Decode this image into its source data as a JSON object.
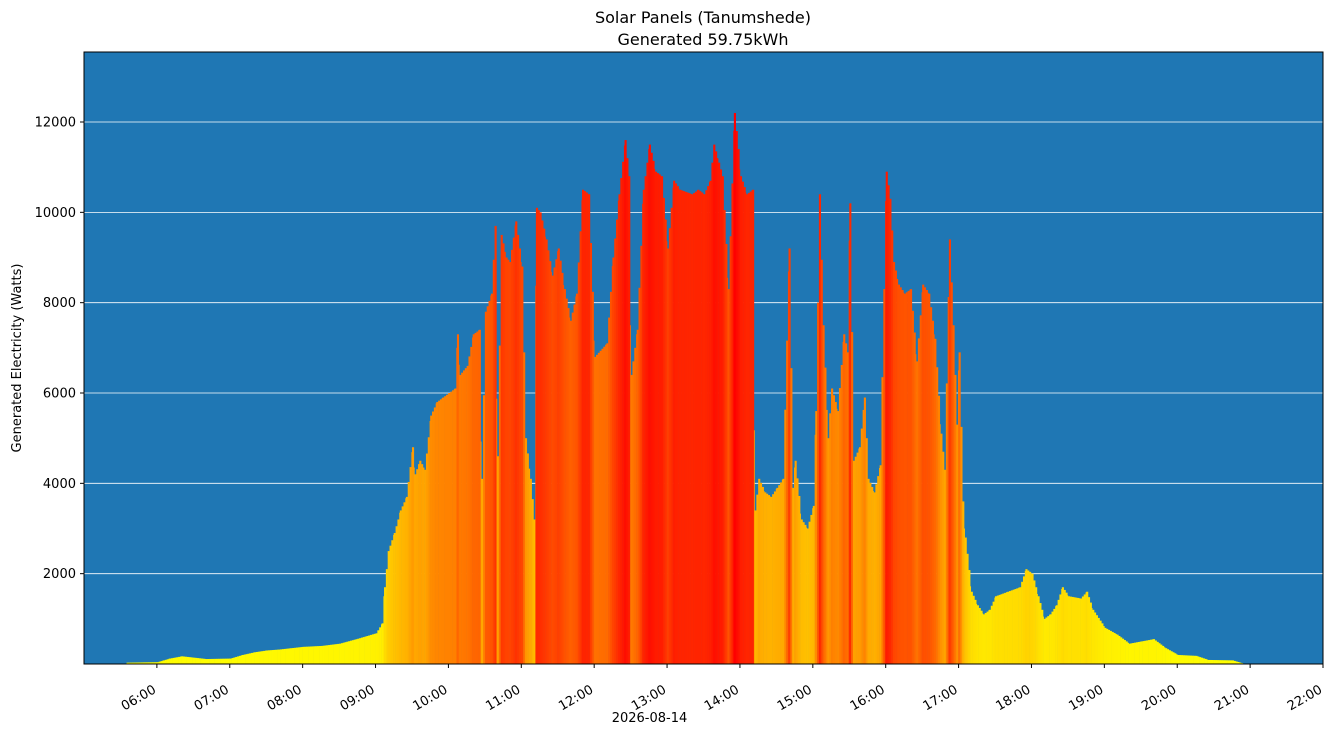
{
  "chart_data": {
    "type": "bar",
    "title": "Solar Panels (Tanumshede)",
    "subtitle": "Generated 59.75kWh",
    "xlabel": "2026-08-14",
    "ylabel": "Generated Electricity (Watts)",
    "ylim": [
      0,
      13550
    ],
    "xlim_hours": [
      5.0,
      22.0
    ],
    "grid": "horizontal",
    "background_color": "#1f77b4",
    "grid_color": "#ffffff",
    "color_scale": {
      "low": "#ffff00",
      "high": "#ff0000",
      "max_watts": 12200
    },
    "y_ticks": [
      2000,
      4000,
      6000,
      8000,
      10000,
      12000
    ],
    "y_tick_labels": [
      "2000",
      "4000",
      "6000",
      "8000",
      "10000",
      "12000"
    ],
    "x_ticks": [
      "06:00",
      "07:00",
      "08:00",
      "09:00",
      "10:00",
      "11:00",
      "12:00",
      "13:00",
      "14:00",
      "15:00",
      "16:00",
      "17:00",
      "18:00",
      "19:00",
      "20:00",
      "21:00",
      "22:00"
    ],
    "profile": [
      [
        "05:35",
        30
      ],
      [
        "06:00",
        40
      ],
      [
        "06:05",
        80
      ],
      [
        "06:10",
        120
      ],
      [
        "06:20",
        170
      ],
      [
        "06:30",
        140
      ],
      [
        "06:40",
        110
      ],
      [
        "07:00",
        120
      ],
      [
        "07:10",
        200
      ],
      [
        "07:20",
        260
      ],
      [
        "07:30",
        300
      ],
      [
        "07:40",
        320
      ],
      [
        "07:50",
        350
      ],
      [
        "08:00",
        380
      ],
      [
        "08:15",
        400
      ],
      [
        "08:30",
        450
      ],
      [
        "08:45",
        560
      ],
      [
        "09:00",
        680
      ],
      [
        "09:05",
        900
      ],
      [
        "09:07",
        1700
      ],
      [
        "09:10",
        2500
      ],
      [
        "09:15",
        2900
      ],
      [
        "09:20",
        3400
      ],
      [
        "09:25",
        3700
      ],
      [
        "09:30",
        4800
      ],
      [
        "09:32",
        4200
      ],
      [
        "09:36",
        4500
      ],
      [
        "09:40",
        4300
      ],
      [
        "09:45",
        5500
      ],
      [
        "09:50",
        5800
      ],
      [
        "09:55",
        5900
      ],
      [
        "10:00",
        6000
      ],
      [
        "10:05",
        6100
      ],
      [
        "10:07",
        7300
      ],
      [
        "10:09",
        6400
      ],
      [
        "10:15",
        6600
      ],
      [
        "10:20",
        7300
      ],
      [
        "10:25",
        7400
      ],
      [
        "10:27",
        4100
      ],
      [
        "10:30",
        7800
      ],
      [
        "10:35",
        8200
      ],
      [
        "10:38",
        9700
      ],
      [
        "10:40",
        4600
      ],
      [
        "10:43",
        9500
      ],
      [
        "10:47",
        9000
      ],
      [
        "10:50",
        8900
      ],
      [
        "10:55",
        9800
      ],
      [
        "11:00",
        8800
      ],
      [
        "11:03",
        5000
      ],
      [
        "11:07",
        4100
      ],
      [
        "11:10",
        3200
      ],
      [
        "11:12",
        10100
      ],
      [
        "11:15",
        10000
      ],
      [
        "11:20",
        9400
      ],
      [
        "11:25",
        8600
      ],
      [
        "11:30",
        9200
      ],
      [
        "11:35",
        8300
      ],
      [
        "11:40",
        7600
      ],
      [
        "11:45",
        8200
      ],
      [
        "11:50",
        10500
      ],
      [
        "11:55",
        10400
      ],
      [
        "12:00",
        6800
      ],
      [
        "12:10",
        7100
      ],
      [
        "12:15",
        9000
      ],
      [
        "12:20",
        10400
      ],
      [
        "12:25",
        11600
      ],
      [
        "12:28",
        10800
      ],
      [
        "12:30",
        6400
      ],
      [
        "12:35",
        7400
      ],
      [
        "12:40",
        10500
      ],
      [
        "12:45",
        11500
      ],
      [
        "12:50",
        10900
      ],
      [
        "12:55",
        10800
      ],
      [
        "13:00",
        9200
      ],
      [
        "13:05",
        10700
      ],
      [
        "13:10",
        10500
      ],
      [
        "13:20",
        10400
      ],
      [
        "13:25",
        10500
      ],
      [
        "13:30",
        10400
      ],
      [
        "13:35",
        10700
      ],
      [
        "13:38",
        11500
      ],
      [
        "13:42",
        11100
      ],
      [
        "13:45",
        10800
      ],
      [
        "13:50",
        8300
      ],
      [
        "13:55",
        12200
      ],
      [
        "13:58",
        11400
      ],
      [
        "14:00",
        10800
      ],
      [
        "14:05",
        10400
      ],
      [
        "14:10",
        10500
      ],
      [
        "14:12",
        3400
      ],
      [
        "14:15",
        4100
      ],
      [
        "14:20",
        3800
      ],
      [
        "14:25",
        3700
      ],
      [
        "14:30",
        3900
      ],
      [
        "14:35",
        4100
      ],
      [
        "14:40",
        9200
      ],
      [
        "14:43",
        3900
      ],
      [
        "14:45",
        4500
      ],
      [
        "14:50",
        3200
      ],
      [
        "14:55",
        3000
      ],
      [
        "15:00",
        3500
      ],
      [
        "15:02",
        5600
      ],
      [
        "15:05",
        10400
      ],
      [
        "15:08",
        7500
      ],
      [
        "15:12",
        5000
      ],
      [
        "15:15",
        6100
      ],
      [
        "15:20",
        5600
      ],
      [
        "15:25",
        7300
      ],
      [
        "15:28",
        6900
      ],
      [
        "15:30",
        10200
      ],
      [
        "15:33",
        4500
      ],
      [
        "15:38",
        4800
      ],
      [
        "15:42",
        5900
      ],
      [
        "15:45",
        4100
      ],
      [
        "15:50",
        3800
      ],
      [
        "15:55",
        4400
      ],
      [
        "16:00",
        10900
      ],
      [
        "16:03",
        10300
      ],
      [
        "16:06",
        8900
      ],
      [
        "16:10",
        8400
      ],
      [
        "16:15",
        8200
      ],
      [
        "16:20",
        8300
      ],
      [
        "16:25",
        6700
      ],
      [
        "16:30",
        8400
      ],
      [
        "16:35",
        8200
      ],
      [
        "16:40",
        7200
      ],
      [
        "16:45",
        5100
      ],
      [
        "16:48",
        4300
      ],
      [
        "16:52",
        9400
      ],
      [
        "16:55",
        7500
      ],
      [
        "16:58",
        5300
      ],
      [
        "17:00",
        6900
      ],
      [
        "17:03",
        3600
      ],
      [
        "17:05",
        2800
      ],
      [
        "17:10",
        1600
      ],
      [
        "17:15",
        1300
      ],
      [
        "17:20",
        1100
      ],
      [
        "17:25",
        1200
      ],
      [
        "17:30",
        1500
      ],
      [
        "17:40",
        1600
      ],
      [
        "17:50",
        1700
      ],
      [
        "17:55",
        2100
      ],
      [
        "18:00",
        2000
      ],
      [
        "18:05",
        1500
      ],
      [
        "18:10",
        1000
      ],
      [
        "18:15",
        1100
      ],
      [
        "18:20",
        1300
      ],
      [
        "18:25",
        1700
      ],
      [
        "18:30",
        1500
      ],
      [
        "18:40",
        1450
      ],
      [
        "18:45",
        1600
      ],
      [
        "18:50",
        1200
      ],
      [
        "19:00",
        800
      ],
      [
        "19:10",
        650
      ],
      [
        "19:20",
        450
      ],
      [
        "19:30",
        500
      ],
      [
        "19:40",
        550
      ],
      [
        "19:50",
        350
      ],
      [
        "20:00",
        200
      ],
      [
        "20:15",
        180
      ],
      [
        "20:25",
        90
      ],
      [
        "20:45",
        80
      ],
      [
        "20:55",
        0
      ]
    ]
  }
}
